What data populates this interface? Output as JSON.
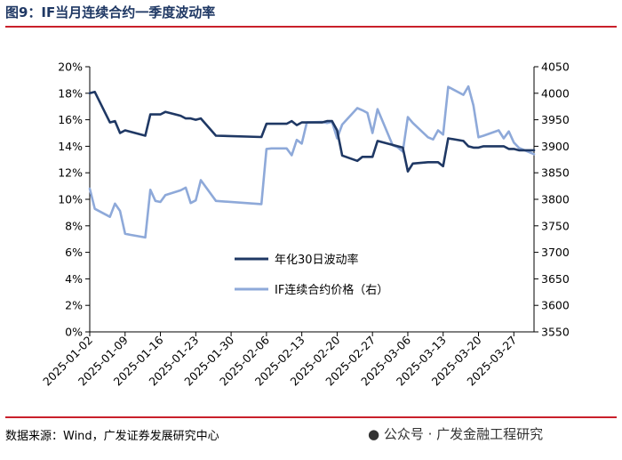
{
  "header": {
    "title": "图9：IF当月连续合约一季度波动率"
  },
  "footer": {
    "source": "数据来源：Wind，广发证券发展研究中心",
    "watermark": "公众号 · 广发金融工程研究"
  },
  "colors": {
    "title": "#1f3864",
    "rule": "#c9202b",
    "vol_line": "#1f3864",
    "price_line": "#8ea9d9"
  },
  "chart_data": {
    "type": "line",
    "title": "",
    "xlabel": "",
    "ylabel": "",
    "x_tick_labels": [
      "2025-01-02",
      "2025-01-09",
      "2025-01-16",
      "2025-01-23",
      "2025-01-30",
      "2025-02-06",
      "2025-02-13",
      "2025-02-20",
      "2025-02-27",
      "2025-03-06",
      "2025-03-13",
      "2025-03-20",
      "2025-03-27"
    ],
    "y_left": {
      "min": 0,
      "max": 20,
      "ticks": [
        "0%",
        "2%",
        "4%",
        "6%",
        "8%",
        "10%",
        "12%",
        "14%",
        "16%",
        "18%",
        "20%"
      ]
    },
    "y_right": {
      "min": 3550,
      "max": 4050,
      "ticks": [
        "3550",
        "3600",
        "3650",
        "3700",
        "3750",
        "3800",
        "3850",
        "3900",
        "3950",
        "4000",
        "4050"
      ]
    },
    "legend_position": "center",
    "series": [
      {
        "name": "年化30日波动率",
        "axis": "left",
        "color": "#1f3864",
        "points": [
          [
            "2025-01-02",
            18.0
          ],
          [
            "2025-01-03",
            18.1
          ],
          [
            "2025-01-06",
            15.8
          ],
          [
            "2025-01-07",
            15.9
          ],
          [
            "2025-01-08",
            15.0
          ],
          [
            "2025-01-09",
            15.2
          ],
          [
            "2025-01-10",
            15.1
          ],
          [
            "2025-01-13",
            14.8
          ],
          [
            "2025-01-14",
            16.4
          ],
          [
            "2025-01-15",
            16.4
          ],
          [
            "2025-01-16",
            16.4
          ],
          [
            "2025-01-17",
            16.6
          ],
          [
            "2025-01-20",
            16.3
          ],
          [
            "2025-01-21",
            16.1
          ],
          [
            "2025-01-22",
            16.1
          ],
          [
            "2025-01-23",
            16.0
          ],
          [
            "2025-01-24",
            16.1
          ],
          [
            "2025-01-27",
            14.8
          ],
          [
            "2025-02-05",
            14.7
          ],
          [
            "2025-02-06",
            15.7
          ],
          [
            "2025-02-07",
            15.7
          ],
          [
            "2025-02-10",
            15.7
          ],
          [
            "2025-02-11",
            15.9
          ],
          [
            "2025-02-12",
            15.6
          ],
          [
            "2025-02-13",
            15.8
          ],
          [
            "2025-02-14",
            15.8
          ],
          [
            "2025-02-17",
            15.8
          ],
          [
            "2025-02-18",
            15.9
          ],
          [
            "2025-02-19",
            15.9
          ],
          [
            "2025-02-20",
            15.2
          ],
          [
            "2025-02-21",
            13.3
          ],
          [
            "2025-02-24",
            12.9
          ],
          [
            "2025-02-25",
            13.2
          ],
          [
            "2025-02-26",
            13.2
          ],
          [
            "2025-02-27",
            13.2
          ],
          [
            "2025-02-28",
            14.4
          ],
          [
            "2025-03-03",
            14.1
          ],
          [
            "2025-03-04",
            14.0
          ],
          [
            "2025-03-05",
            13.9
          ],
          [
            "2025-03-06",
            12.1
          ],
          [
            "2025-03-07",
            12.7
          ],
          [
            "2025-03-10",
            12.8
          ],
          [
            "2025-03-11",
            12.8
          ],
          [
            "2025-03-12",
            12.8
          ],
          [
            "2025-03-13",
            12.5
          ],
          [
            "2025-03-14",
            14.6
          ],
          [
            "2025-03-17",
            14.4
          ],
          [
            "2025-03-18",
            14.0
          ],
          [
            "2025-03-19",
            13.9
          ],
          [
            "2025-03-20",
            13.9
          ],
          [
            "2025-03-21",
            14.0
          ],
          [
            "2025-03-24",
            14.0
          ],
          [
            "2025-03-25",
            14.0
          ],
          [
            "2025-03-26",
            13.8
          ],
          [
            "2025-03-27",
            13.8
          ],
          [
            "2025-03-28",
            13.7
          ],
          [
            "2025-03-31",
            13.7
          ]
        ]
      },
      {
        "name": "IF连续合约价格（右）",
        "axis": "right",
        "color": "#8ea9d9",
        "points": [
          [
            "2025-01-02",
            3820
          ],
          [
            "2025-01-03",
            3782
          ],
          [
            "2025-01-06",
            3767
          ],
          [
            "2025-01-07",
            3792
          ],
          [
            "2025-01-08",
            3778
          ],
          [
            "2025-01-09",
            3735
          ],
          [
            "2025-01-10",
            3733
          ],
          [
            "2025-01-13",
            3728
          ],
          [
            "2025-01-14",
            3818
          ],
          [
            "2025-01-15",
            3797
          ],
          [
            "2025-01-16",
            3795
          ],
          [
            "2025-01-17",
            3808
          ],
          [
            "2025-01-20",
            3817
          ],
          [
            "2025-01-21",
            3822
          ],
          [
            "2025-01-22",
            3793
          ],
          [
            "2025-01-23",
            3798
          ],
          [
            "2025-01-24",
            3836
          ],
          [
            "2025-01-27",
            3797
          ],
          [
            "2025-02-05",
            3791
          ],
          [
            "2025-02-06",
            3895
          ],
          [
            "2025-02-07",
            3896
          ],
          [
            "2025-02-10",
            3896
          ],
          [
            "2025-02-11",
            3883
          ],
          [
            "2025-02-12",
            3912
          ],
          [
            "2025-02-13",
            3905
          ],
          [
            "2025-02-14",
            3945
          ],
          [
            "2025-02-17",
            3946
          ],
          [
            "2025-02-18",
            3944
          ],
          [
            "2025-02-19",
            3946
          ],
          [
            "2025-02-20",
            3915
          ],
          [
            "2025-02-21",
            3941
          ],
          [
            "2025-02-24",
            3972
          ],
          [
            "2025-02-25",
            3968
          ],
          [
            "2025-02-26",
            3963
          ],
          [
            "2025-02-27",
            3925
          ],
          [
            "2025-02-28",
            3970
          ],
          [
            "2025-03-03",
            3902
          ],
          [
            "2025-03-04",
            3898
          ],
          [
            "2025-03-05",
            3890
          ],
          [
            "2025-03-06",
            3955
          ],
          [
            "2025-03-07",
            3944
          ],
          [
            "2025-03-10",
            3917
          ],
          [
            "2025-03-11",
            3913
          ],
          [
            "2025-03-12",
            3930
          ],
          [
            "2025-03-13",
            3922
          ],
          [
            "2025-03-14",
            4012
          ],
          [
            "2025-03-17",
            3997
          ],
          [
            "2025-03-18",
            4013
          ],
          [
            "2025-03-19",
            3977
          ],
          [
            "2025-03-20",
            3917
          ],
          [
            "2025-03-21",
            3920
          ],
          [
            "2025-03-24",
            3930
          ],
          [
            "2025-03-25",
            3915
          ],
          [
            "2025-03-26",
            3928
          ],
          [
            "2025-03-27",
            3907
          ],
          [
            "2025-03-28",
            3897
          ],
          [
            "2025-03-31",
            3885
          ]
        ]
      }
    ]
  }
}
